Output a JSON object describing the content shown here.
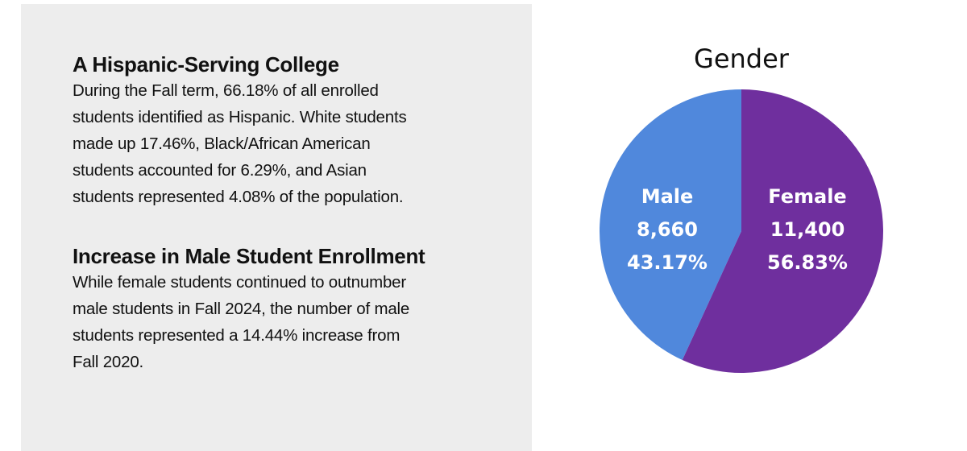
{
  "sections": [
    {
      "heading": "A Hispanic-Serving College",
      "lines": [
        "During the Fall term, 66.18% of all enrolled",
        "students identified as Hispanic. White students",
        "made up 17.46%, Black/African American",
        "students accounted for 6.29%, and Asian",
        "students represented 4.08% of the population."
      ]
    },
    {
      "heading": "Increase in Male Student Enrollment",
      "lines": [
        "While female students continued to outnumber",
        "male students in Fall 2024, the number of male",
        "students represented a 14.44% increase from",
        "Fall 2020."
      ]
    }
  ],
  "chart_data": {
    "type": "pie",
    "title": "Gender",
    "slices": [
      {
        "label": "Male",
        "value": 8660,
        "value_text": "8,660",
        "percent_text": "43.17%",
        "color": "#5088dc"
      },
      {
        "label": "Female",
        "value": 11400,
        "value_text": "11,400",
        "percent_text": "56.83%",
        "color": "#6f2f9e"
      }
    ]
  }
}
